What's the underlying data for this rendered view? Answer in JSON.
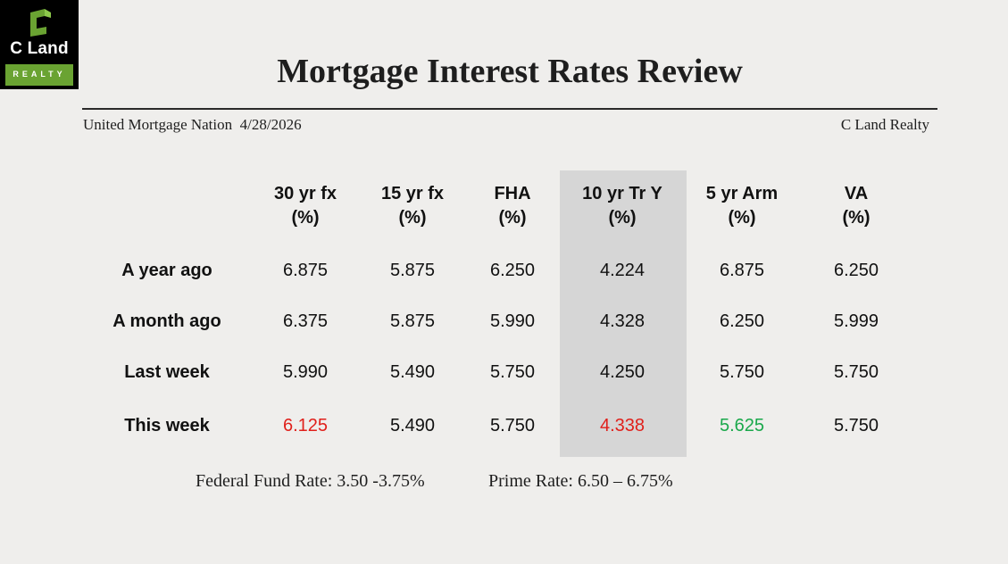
{
  "logo": {
    "name": "C Land",
    "sub": "REALTY",
    "colors": {
      "mark": "#6aa332",
      "bar": "#6aa332",
      "background": "#000000"
    }
  },
  "title": "Mortgage Interest Rates Review",
  "subtitle": {
    "source": "United Mortgage Nation",
    "date": "4/28/2026",
    "company": "C Land Realty"
  },
  "table": {
    "columns": [
      {
        "line1": "30 yr fx",
        "line2": "(%)"
      },
      {
        "line1": "15 yr fx",
        "line2": "(%)"
      },
      {
        "line1": "FHA",
        "line2": "(%)"
      },
      {
        "line1": "10 yr Tr Y",
        "line2": "(%)"
      },
      {
        "line1": "5 yr Arm",
        "line2": "(%)"
      },
      {
        "line1": "VA",
        "line2": "(%)"
      }
    ],
    "rows": [
      {
        "label": "A year ago",
        "values": [
          "6.875",
          "5.875",
          "6.250",
          "4.224",
          "6.875",
          "6.250"
        ]
      },
      {
        "label": "A month ago",
        "values": [
          "6.375",
          "5.875",
          "5.990",
          "4.328",
          "6.250",
          "5.999"
        ]
      },
      {
        "label": "Last week",
        "values": [
          "5.990",
          "5.490",
          "5.750",
          "4.250",
          "5.750",
          "5.750"
        ]
      },
      {
        "label": "This week",
        "values": [
          "6.125",
          "5.490",
          "5.750",
          "4.338",
          "5.625",
          "5.750"
        ]
      }
    ],
    "highlight_color": "#d6d6d6",
    "value_colors": {
      "up": "#e0201b",
      "down": "#1aa84b",
      "neutral": "#111111"
    }
  },
  "footer": {
    "fed_rate": "Federal Fund Rate: 3.50 -3.75%",
    "prime_rate": "Prime Rate: 6.50 – 6.75%"
  }
}
